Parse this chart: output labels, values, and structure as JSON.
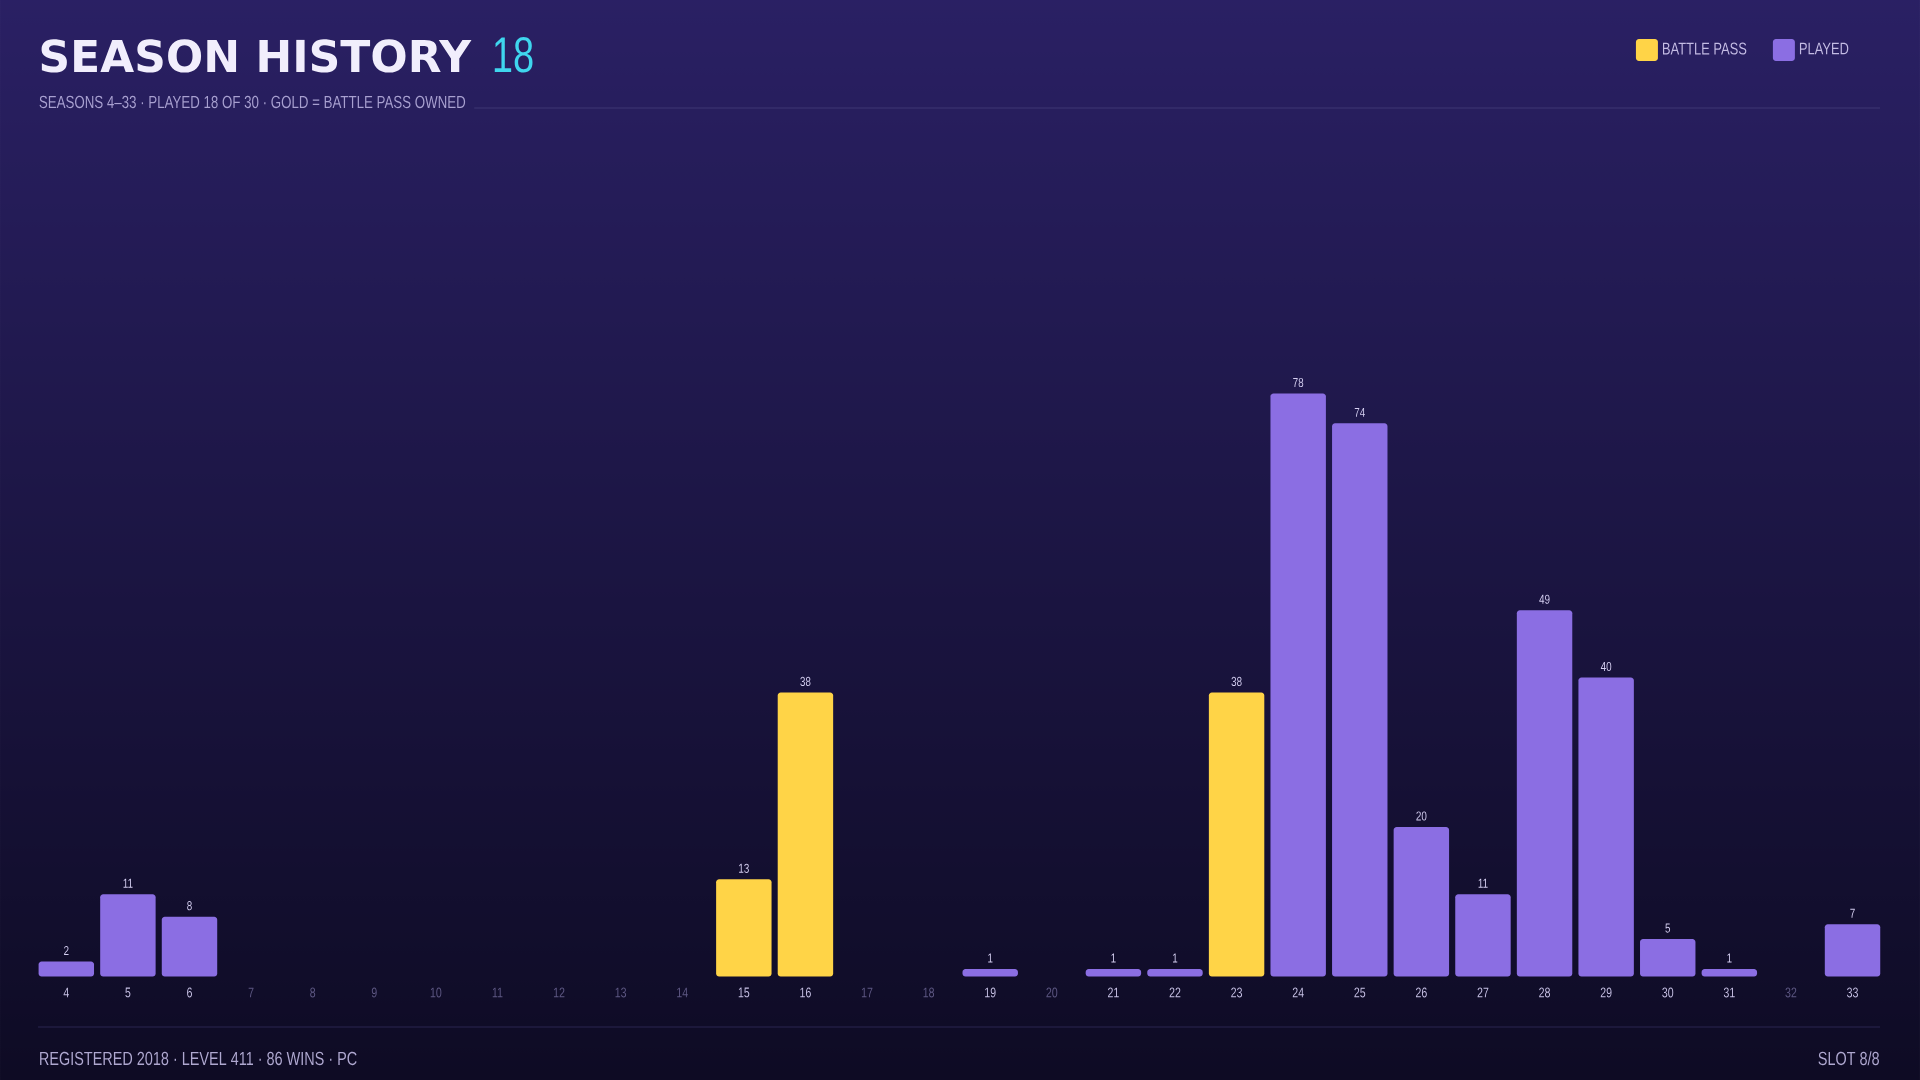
{
  "chart_data": {
    "type": "bar",
    "title": "SEASON HISTORY",
    "subtitle": "SEASONS 4–33 · PLAYED 18 OF 30 · GOLD = BATTLE PASS OWNED",
    "categories": [
      "4",
      "5",
      "6",
      "7",
      "8",
      "9",
      "10",
      "11",
      "12",
      "13",
      "14",
      "15",
      "16",
      "17",
      "18",
      "19",
      "20",
      "21",
      "22",
      "23",
      "24",
      "25",
      "26",
      "27",
      "28",
      "29",
      "30",
      "31",
      "32",
      "33"
    ],
    "stacked": true,
    "series": [
      {
        "name": "BATTLE PASS",
        "color": "#ffd447",
        "values": [
          null,
          null,
          null,
          null,
          null,
          null,
          null,
          null,
          null,
          null,
          null,
          13,
          38,
          null,
          null,
          null,
          null,
          null,
          null,
          38,
          null,
          null,
          null,
          null,
          null,
          null,
          null,
          null,
          null,
          null
        ]
      },
      {
        "name": "PLAYED",
        "color": "#8b6ee3",
        "values": [
          2,
          11,
          8,
          null,
          null,
          null,
          null,
          null,
          null,
          null,
          null,
          null,
          null,
          null,
          null,
          1,
          null,
          1,
          1,
          null,
          78,
          74,
          20,
          11,
          49,
          40,
          5,
          1,
          null,
          7
        ]
      }
    ],
    "data_labels": true,
    "legend": "top right",
    "tick_labels": "x",
    "annotations": [
      "18",
      "REGISTERED 2018 · LEVEL 411 · 86 WINS · PC",
      "SLOT 8/8"
    ]
  }
}
